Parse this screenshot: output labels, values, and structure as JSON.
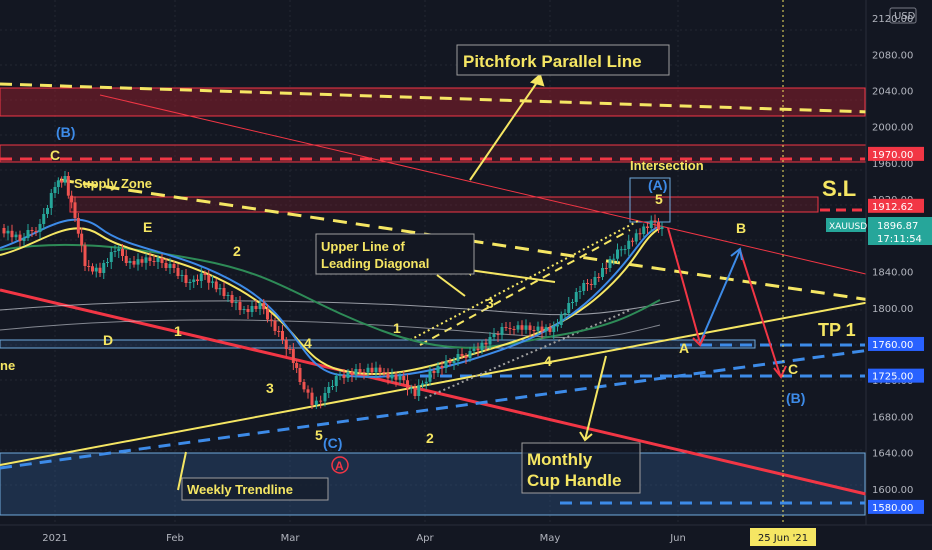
{
  "chart_data": {
    "type": "candlestick",
    "symbol": "XAUUSD",
    "currency": "USD",
    "last_price": "1896.87",
    "countdown": "17:11:54",
    "ylim": [
      1560,
      2140
    ],
    "y_ticks": [
      "2120.00",
      "2080.00",
      "2040.00",
      "2000.00",
      "1960.00",
      "1920.00",
      "1880.00",
      "1840.00",
      "1800.00",
      "1760.00",
      "1720.00",
      "1680.00",
      "1640.00",
      "1600.00"
    ],
    "x_ticks": [
      "2021",
      "Feb",
      "Mar",
      "Apr",
      "May",
      "Jun",
      "25 Jun '21"
    ],
    "price_tags": [
      {
        "label": "1970.00",
        "value": 1970,
        "color": "#f23645"
      },
      {
        "label": "1912.62",
        "value": 1912.62,
        "color": "#f23645"
      },
      {
        "label": "1760.00",
        "value": 1760,
        "color": "#2962ff"
      },
      {
        "label": "1725.00",
        "value": 1725,
        "color": "#2962ff"
      },
      {
        "label": "1580.00",
        "value": 1580,
        "color": "#2962ff"
      }
    ],
    "annotations": {
      "pitchfork": "Pitchfork Parallel  Line",
      "upper_line": [
        "Upper Line of",
        "Leading Diagonal"
      ],
      "supply_zone": "Supply Zone",
      "intersection": "Intersection",
      "sl": "S.L",
      "tp1": "TP 1",
      "monthly": [
        "Monthly",
        "Cup Handle"
      ],
      "weekly": "Weekly Trendline",
      "left_fragment": "ne"
    },
    "wave_labels": [
      "(B)",
      "C",
      "E",
      "D",
      "1",
      "2",
      "3",
      "4",
      "5",
      "(C)",
      "A",
      "1",
      "2",
      "3",
      "4",
      "5",
      "(A)",
      "A",
      "B",
      "C",
      "(B)"
    ]
  },
  "colors": {
    "bg": "#131722",
    "up": "#26a69a",
    "down": "#ef5350",
    "yellow": "#f5e663",
    "red_line": "#f23645",
    "blue_dash": "#3d8be8"
  }
}
